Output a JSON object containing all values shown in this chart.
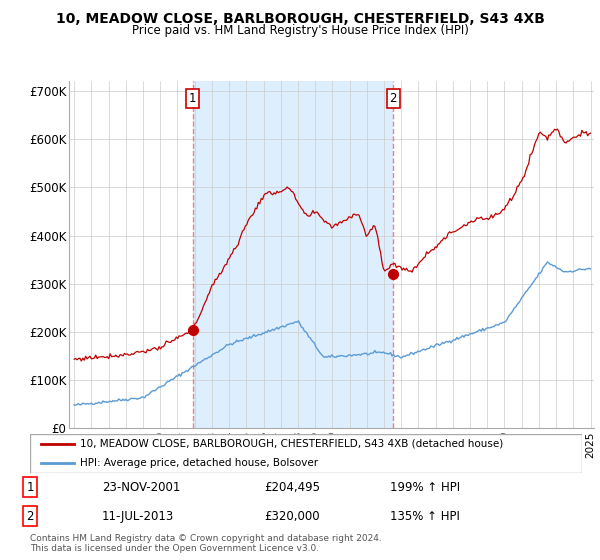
{
  "title1": "10, MEADOW CLOSE, BARLBOROUGH, CHESTERFIELD, S43 4XB",
  "title2": "Price paid vs. HM Land Registry's House Price Index (HPI)",
  "legend_line1": "10, MEADOW CLOSE, BARLBOROUGH, CHESTERFIELD, S43 4XB (detached house)",
  "legend_line2": "HPI: Average price, detached house, Bolsover",
  "purchase1_date": "23-NOV-2001",
  "purchase1_price": "£204,495",
  "purchase1_hpi": "199% ↑ HPI",
  "purchase2_date": "11-JUL-2013",
  "purchase2_price": "£320,000",
  "purchase2_hpi": "135% ↑ HPI",
  "footer": "Contains HM Land Registry data © Crown copyright and database right 2024.\nThis data is licensed under the Open Government Licence v3.0.",
  "hpi_color": "#5b9bd5",
  "property_color": "#c00000",
  "vline_color": "#f08080",
  "dot_color": "#c00000",
  "shade_color": "#ddeeff",
  "ylim": [
    0,
    720000
  ],
  "yticks": [
    0,
    100000,
    200000,
    300000,
    400000,
    500000,
    600000,
    700000
  ],
  "ytick_labels": [
    "£0",
    "£100K",
    "£200K",
    "£300K",
    "£400K",
    "£500K",
    "£600K",
    "£700K"
  ],
  "xmin": 1994.7,
  "xmax": 2025.2
}
